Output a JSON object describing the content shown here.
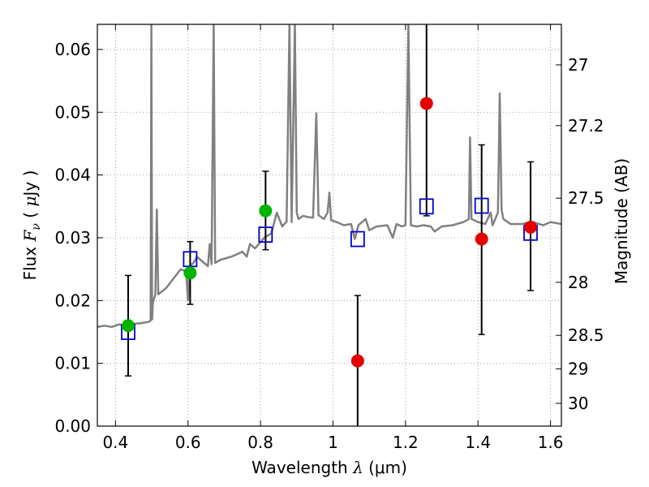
{
  "chart_data": {
    "type": "scatter",
    "title": "",
    "xlabel": "Wavelength  λ (μm)",
    "ylabel": "Flux  F_ν  ( μJy )",
    "ylabel_parts": {
      "prefix": "Flux  ",
      "symbol": "F",
      "subscript": "ν",
      "paren_open": "  (  ",
      "mu": "μ",
      "unit": "Jy )"
    },
    "xlabel_parts": {
      "prefix": "Wavelength  ",
      "symbol": "λ",
      "unit": " (μm)"
    },
    "y2label": "Magnitude (AB)",
    "xlim": [
      0.35,
      1.63
    ],
    "ylim": [
      0.0,
      0.064
    ],
    "grid": true,
    "x_ticks": [
      {
        "value": 0.4,
        "label": "0.4"
      },
      {
        "value": 0.6,
        "label": "0.6"
      },
      {
        "value": 0.8,
        "label": "0.8"
      },
      {
        "value": 1.0,
        "label": "1"
      },
      {
        "value": 1.2,
        "label": "1.2"
      },
      {
        "value": 1.4,
        "label": "1.4"
      },
      {
        "value": 1.6,
        "label": "1.6"
      }
    ],
    "y_ticks": [
      {
        "value": 0.0,
        "label": "0.00"
      },
      {
        "value": 0.01,
        "label": "0.01"
      },
      {
        "value": 0.02,
        "label": "0.02"
      },
      {
        "value": 0.03,
        "label": "0.03"
      },
      {
        "value": 0.04,
        "label": "0.04"
      },
      {
        "value": 0.05,
        "label": "0.05"
      },
      {
        "value": 0.06,
        "label": "0.06"
      }
    ],
    "y2_ticks": [
      {
        "mag": 27.0,
        "label": "27"
      },
      {
        "mag": 27.2,
        "label": "27.2"
      },
      {
        "mag": 27.5,
        "label": "27.5"
      },
      {
        "mag": 28.0,
        "label": "28"
      },
      {
        "mag": 28.5,
        "label": "28.5"
      },
      {
        "mag": 29.0,
        "label": "29"
      },
      {
        "mag": 30.0,
        "label": "30"
      }
    ],
    "colors": {
      "green": "#00b400",
      "red": "#e50000",
      "blue": "#0000cc",
      "spectrum": "#808080",
      "errorbar": "#000000",
      "grid": "#888888"
    },
    "series": [
      {
        "name": "observed (green)",
        "marker": "circle",
        "color": "#00b400",
        "points": [
          {
            "x": 0.435,
            "y": 0.016,
            "yerr_low": 0.008,
            "yerr_high": 0.024
          },
          {
            "x": 0.606,
            "y": 0.0244,
            "yerr_low": 0.0194,
            "yerr_high": 0.0294
          },
          {
            "x": 0.814,
            "y": 0.0343,
            "yerr_low": 0.0281,
            "yerr_high": 0.0406
          }
        ]
      },
      {
        "name": "observed (red)",
        "marker": "circle",
        "color": "#e50000",
        "points": [
          {
            "x": 1.068,
            "y": 0.0104,
            "yerr_low": 0.0,
            "yerr_high": 0.0208
          },
          {
            "x": 1.258,
            "y": 0.0514,
            "yerr_low": 0.0335,
            "yerr_high": 0.064
          },
          {
            "x": 1.41,
            "y": 0.0298,
            "yerr_low": 0.0146,
            "yerr_high": 0.0448
          },
          {
            "x": 1.545,
            "y": 0.0317,
            "yerr_low": 0.0216,
            "yerr_high": 0.0421
          }
        ]
      },
      {
        "name": "model",
        "marker": "open-square",
        "color": "#0000cc",
        "points": [
          {
            "x": 0.435,
            "y": 0.015
          },
          {
            "x": 0.606,
            "y": 0.0266
          },
          {
            "x": 0.814,
            "y": 0.0305
          },
          {
            "x": 1.068,
            "y": 0.0298
          },
          {
            "x": 1.258,
            "y": 0.035
          },
          {
            "x": 1.41,
            "y": 0.0351
          },
          {
            "x": 1.545,
            "y": 0.0308
          }
        ]
      },
      {
        "name": "spectrum",
        "marker": "line",
        "color": "#808080",
        "points": [
          [
            0.35,
            0.0158
          ],
          [
            0.37,
            0.016
          ],
          [
            0.39,
            0.0158
          ],
          [
            0.41,
            0.0162
          ],
          [
            0.43,
            0.0159
          ],
          [
            0.45,
            0.0163
          ],
          [
            0.47,
            0.0164
          ],
          [
            0.49,
            0.0166
          ],
          [
            0.497,
            0.0168
          ],
          [
            0.499,
            0.064
          ],
          [
            0.501,
            0.017
          ],
          [
            0.503,
            0.0195
          ],
          [
            0.505,
            0.02
          ],
          [
            0.51,
            0.021
          ],
          [
            0.514,
            0.0345
          ],
          [
            0.518,
            0.021
          ],
          [
            0.54,
            0.022
          ],
          [
            0.56,
            0.0235
          ],
          [
            0.58,
            0.025
          ],
          [
            0.595,
            0.0246
          ],
          [
            0.6,
            0.02
          ],
          [
            0.605,
            0.0255
          ],
          [
            0.615,
            0.026
          ],
          [
            0.625,
            0.027
          ],
          [
            0.64,
            0.0262
          ],
          [
            0.655,
            0.0255
          ],
          [
            0.66,
            0.029
          ],
          [
            0.665,
            0.0258
          ],
          [
            0.671,
            0.064
          ],
          [
            0.675,
            0.026
          ],
          [
            0.69,
            0.0265
          ],
          [
            0.72,
            0.027
          ],
          [
            0.74,
            0.0275
          ],
          [
            0.75,
            0.0278
          ],
          [
            0.762,
            0.027
          ],
          [
            0.771,
            0.029
          ],
          [
            0.785,
            0.0283
          ],
          [
            0.81,
            0.03
          ],
          [
            0.83,
            0.0307
          ],
          [
            0.845,
            0.034
          ],
          [
            0.86,
            0.0318
          ],
          [
            0.872,
            0.0326
          ],
          [
            0.88,
            0.064
          ],
          [
            0.886,
            0.0325
          ],
          [
            0.895,
            0.064
          ],
          [
            0.9,
            0.034
          ],
          [
            0.905,
            0.033
          ],
          [
            0.918,
            0.0335
          ],
          [
            0.93,
            0.0333
          ],
          [
            0.945,
            0.0332
          ],
          [
            0.954,
            0.0498
          ],
          [
            0.96,
            0.0336
          ],
          [
            0.975,
            0.033
          ],
          [
            0.985,
            0.034
          ],
          [
            0.99,
            0.0372
          ],
          [
            0.995,
            0.0328
          ],
          [
            1.01,
            0.0325
          ],
          [
            1.03,
            0.032
          ],
          [
            1.05,
            0.0322
          ],
          [
            1.06,
            0.0298
          ],
          [
            1.07,
            0.032
          ],
          [
            1.09,
            0.033
          ],
          [
            1.1,
            0.0312
          ],
          [
            1.12,
            0.0318
          ],
          [
            1.15,
            0.032
          ],
          [
            1.165,
            0.03
          ],
          [
            1.175,
            0.0322
          ],
          [
            1.19,
            0.0318
          ],
          [
            1.2,
            0.032
          ],
          [
            1.208,
            0.064
          ],
          [
            1.215,
            0.032
          ],
          [
            1.23,
            0.0318
          ],
          [
            1.25,
            0.032
          ],
          [
            1.27,
            0.0318
          ],
          [
            1.28,
            0.031
          ],
          [
            1.3,
            0.0318
          ],
          [
            1.33,
            0.032
          ],
          [
            1.36,
            0.0325
          ],
          [
            1.375,
            0.033
          ],
          [
            1.378,
            0.046
          ],
          [
            1.382,
            0.033
          ],
          [
            1.4,
            0.0325
          ],
          [
            1.42,
            0.0322
          ],
          [
            1.435,
            0.034
          ],
          [
            1.44,
            0.032
          ],
          [
            1.455,
            0.034
          ],
          [
            1.46,
            0.053
          ],
          [
            1.465,
            0.0345
          ],
          [
            1.47,
            0.033
          ],
          [
            1.49,
            0.0322
          ],
          [
            1.52,
            0.0322
          ],
          [
            1.55,
            0.0325
          ],
          [
            1.58,
            0.032
          ],
          [
            1.6,
            0.0325
          ],
          [
            1.63,
            0.0322
          ]
        ]
      }
    ]
  }
}
